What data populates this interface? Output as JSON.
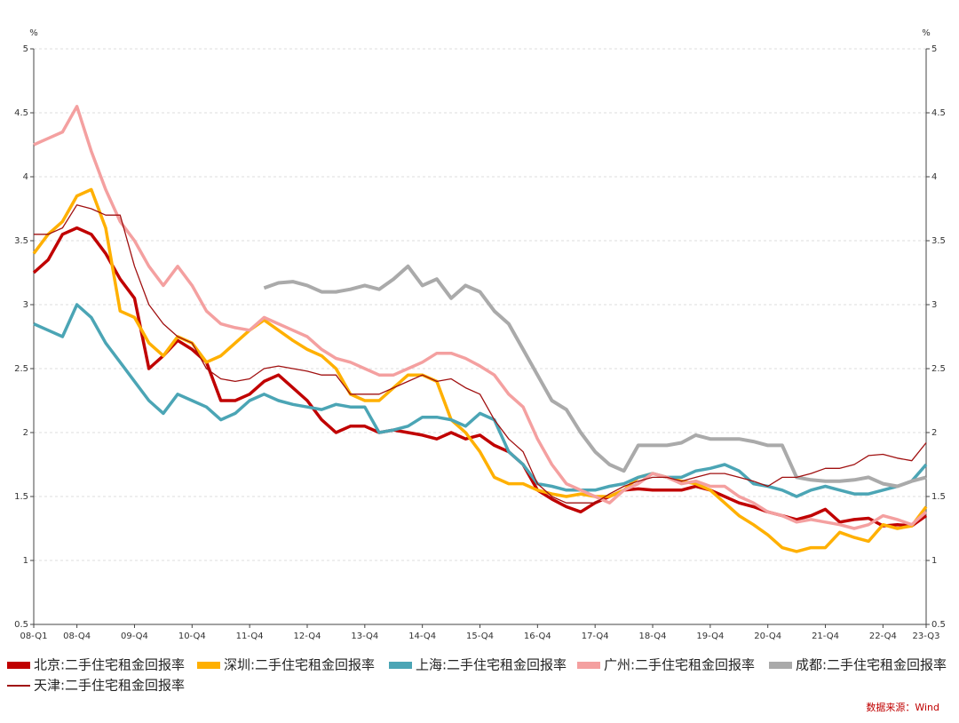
{
  "chart_data": {
    "type": "line",
    "y_unit_left": "%",
    "y_unit_right": "%",
    "source": "数据来源：Wind",
    "categories": [
      "08-Q1",
      null,
      null,
      "08-Q4",
      null,
      null,
      null,
      "09-Q4",
      null,
      null,
      null,
      "10-Q4",
      null,
      null,
      null,
      "11-Q4",
      null,
      null,
      null,
      "12-Q4",
      null,
      null,
      null,
      "13-Q4",
      null,
      null,
      null,
      "14-Q4",
      null,
      null,
      null,
      "15-Q4",
      null,
      null,
      null,
      "16-Q4",
      null,
      null,
      null,
      "17-Q4",
      null,
      null,
      null,
      "18-Q4",
      null,
      null,
      null,
      "19-Q4",
      null,
      null,
      null,
      "20-Q4",
      null,
      null,
      null,
      "21-Q4",
      null,
      null,
      null,
      "22-Q4",
      null,
      null,
      "23-Q3"
    ],
    "ylim": [
      0.5,
      5
    ],
    "yticks": [
      0.5,
      1,
      1.5,
      2,
      2.5,
      3,
      3.5,
      4,
      4.5,
      5
    ],
    "grid": true,
    "series": [
      {
        "name": "北京:二手住宅租金回报率",
        "color": "#c00000",
        "line_width": 3.5,
        "values": [
          3.25,
          3.35,
          3.55,
          3.6,
          3.55,
          3.4,
          3.2,
          3.05,
          2.5,
          2.6,
          2.72,
          2.65,
          2.55,
          2.25,
          2.25,
          2.3,
          2.4,
          2.45,
          2.35,
          2.25,
          2.1,
          2.0,
          2.05,
          2.05,
          2.0,
          2.02,
          2.0,
          1.98,
          1.95,
          2.0,
          1.95,
          1.98,
          1.9,
          1.85,
          1.75,
          1.55,
          1.48,
          1.42,
          1.38,
          1.45,
          1.5,
          1.55,
          1.56,
          1.55,
          1.55,
          1.55,
          1.58,
          1.55,
          1.5,
          1.45,
          1.42,
          1.38,
          1.35,
          1.32,
          1.35,
          1.4,
          1.3,
          1.32,
          1.33,
          1.27,
          1.28,
          1.27,
          1.35
        ]
      },
      {
        "name": "深圳:二手住宅租金回报率",
        "color": "#ffb000",
        "line_width": 3.5,
        "values": [
          3.4,
          3.55,
          3.65,
          3.85,
          3.9,
          3.6,
          2.95,
          2.9,
          2.7,
          2.6,
          2.75,
          2.7,
          2.55,
          2.6,
          2.7,
          2.8,
          2.88,
          2.8,
          2.72,
          2.65,
          2.6,
          2.5,
          2.3,
          2.25,
          2.25,
          2.35,
          2.45,
          2.45,
          2.4,
          2.1,
          2.0,
          1.85,
          1.65,
          1.6,
          1.6,
          1.55,
          1.52,
          1.5,
          1.52,
          1.5,
          1.5,
          1.55,
          1.65,
          1.68,
          1.65,
          1.62,
          1.6,
          1.55,
          1.45,
          1.35,
          1.28,
          1.2,
          1.1,
          1.07,
          1.1,
          1.1,
          1.22,
          1.18,
          1.15,
          1.28,
          1.25,
          1.27,
          1.42
        ]
      },
      {
        "name": "上海:二手住宅租金回报率",
        "color": "#4ba5b5",
        "line_width": 3.5,
        "values": [
          2.85,
          2.8,
          2.75,
          3.0,
          2.9,
          2.7,
          2.55,
          2.4,
          2.25,
          2.15,
          2.3,
          2.25,
          2.2,
          2.1,
          2.15,
          2.25,
          2.3,
          2.25,
          2.22,
          2.2,
          2.18,
          2.22,
          2.2,
          2.2,
          2.0,
          2.02,
          2.05,
          2.12,
          2.12,
          2.1,
          2.05,
          2.15,
          2.1,
          1.85,
          1.75,
          1.6,
          1.58,
          1.55,
          1.55,
          1.55,
          1.58,
          1.6,
          1.65,
          1.68,
          1.65,
          1.65,
          1.7,
          1.72,
          1.75,
          1.7,
          1.6,
          1.58,
          1.55,
          1.5,
          1.55,
          1.58,
          1.55,
          1.52,
          1.52,
          1.55,
          1.58,
          1.62,
          1.75
        ]
      },
      {
        "name": "广州:二手住宅租金回报率",
        "color": "#f4a0a0",
        "line_width": 3.5,
        "values": [
          4.25,
          4.3,
          4.35,
          4.55,
          4.2,
          3.9,
          3.65,
          3.5,
          3.3,
          3.15,
          3.3,
          3.15,
          2.95,
          2.85,
          2.82,
          2.8,
          2.9,
          2.85,
          2.8,
          2.75,
          2.65,
          2.58,
          2.55,
          2.5,
          2.45,
          2.45,
          2.5,
          2.55,
          2.62,
          2.62,
          2.58,
          2.52,
          2.45,
          2.3,
          2.2,
          1.95,
          1.75,
          1.6,
          1.55,
          1.5,
          1.45,
          1.55,
          1.6,
          1.68,
          1.65,
          1.6,
          1.62,
          1.58,
          1.58,
          1.5,
          1.45,
          1.38,
          1.35,
          1.3,
          1.32,
          1.3,
          1.28,
          1.25,
          1.28,
          1.35,
          1.32,
          1.28,
          1.38
        ]
      },
      {
        "name": "成都:二手住宅租金回报率",
        "color": "#aaaaaa",
        "line_width": 4,
        "values": [
          null,
          null,
          null,
          null,
          null,
          null,
          null,
          null,
          null,
          null,
          null,
          null,
          null,
          null,
          null,
          null,
          3.13,
          3.17,
          3.18,
          3.15,
          3.1,
          3.1,
          3.12,
          3.15,
          3.12,
          3.2,
          3.3,
          3.15,
          3.2,
          3.05,
          3.15,
          3.1,
          2.95,
          2.85,
          2.65,
          2.45,
          2.25,
          2.18,
          2.0,
          1.85,
          1.75,
          1.7,
          1.9,
          1.9,
          1.9,
          1.92,
          1.98,
          1.95,
          1.95,
          1.95,
          1.93,
          1.9,
          1.9,
          1.65,
          1.63,
          1.62,
          1.62,
          1.63,
          1.65,
          1.6,
          1.58,
          1.62,
          1.65
        ]
      },
      {
        "name": "天津:二手住宅租金回报率",
        "color": "#a01010",
        "line_width": 1.3,
        "values": [
          3.55,
          3.55,
          3.6,
          3.78,
          3.75,
          3.7,
          3.7,
          3.3,
          3.0,
          2.85,
          2.75,
          2.7,
          2.5,
          2.42,
          2.4,
          2.42,
          2.5,
          2.52,
          2.5,
          2.48,
          2.45,
          2.45,
          2.3,
          2.3,
          2.3,
          2.35,
          2.4,
          2.45,
          2.4,
          2.42,
          2.35,
          2.3,
          2.1,
          1.95,
          1.85,
          1.6,
          1.5,
          1.45,
          1.45,
          1.45,
          1.52,
          1.58,
          1.62,
          1.65,
          1.65,
          1.62,
          1.65,
          1.68,
          1.68,
          1.65,
          1.62,
          1.58,
          1.65,
          1.65,
          1.68,
          1.72,
          1.72,
          1.75,
          1.82,
          1.83,
          1.8,
          1.78,
          1.92
        ]
      }
    ]
  }
}
